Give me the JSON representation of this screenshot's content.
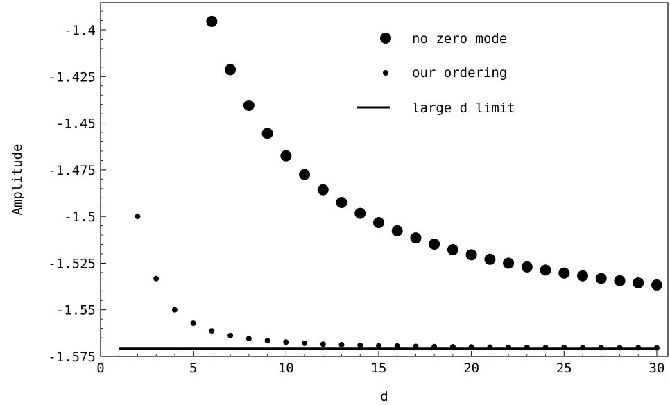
{
  "chart_data": {
    "type": "scatter",
    "title": "",
    "xlabel": "d",
    "ylabel": "Amplitude",
    "xlim": [
      0,
      30.6
    ],
    "ylim": [
      -1.575,
      -1.3855
    ],
    "x_ticks": [
      0,
      5,
      10,
      15,
      20,
      25,
      30
    ],
    "x_tick_labels": [
      "0",
      "5",
      "10",
      "15",
      "20",
      "25",
      "30"
    ],
    "y_ticks": [
      -1.4,
      -1.425,
      -1.45,
      -1.475,
      -1.5,
      -1.525,
      -1.55,
      -1.575
    ],
    "y_tick_labels": [
      "-1.4",
      "-1.425",
      "-1.45",
      "-1.475",
      "-1.5",
      "-1.525",
      "-1.55",
      "-1.575"
    ],
    "grid": false,
    "legend_position": "top-right",
    "legend": [
      "no zero mode",
      "our ordering",
      "large d limit"
    ],
    "series": [
      {
        "name": "no zero mode",
        "marker": "large-dot",
        "color": "#000000",
        "x": [
          6,
          7,
          8,
          9,
          10,
          11,
          12,
          13,
          14,
          15,
          16,
          17,
          18,
          19,
          20,
          21,
          22,
          23,
          24,
          25,
          26,
          27,
          28,
          29,
          30
        ],
        "y": [
          -1.3955,
          -1.4213,
          -1.4405,
          -1.4555,
          -1.4675,
          -1.4775,
          -1.4857,
          -1.4925,
          -1.4983,
          -1.5033,
          -1.5077,
          -1.5115,
          -1.5148,
          -1.5178,
          -1.5205,
          -1.5229,
          -1.525,
          -1.527,
          -1.5287,
          -1.5303,
          -1.5318,
          -1.5332,
          -1.5344,
          -1.5356,
          -1.5367
        ]
      },
      {
        "name": "our ordering",
        "marker": "small-dot",
        "color": "#000000",
        "x": [
          2,
          3,
          4,
          5,
          6,
          7,
          8,
          9,
          10,
          11,
          12,
          13,
          14,
          15,
          16,
          17,
          18,
          19,
          20,
          21,
          22,
          23,
          24,
          25,
          26,
          27,
          28,
          29,
          30
        ],
        "y": [
          -1.5,
          -1.5333,
          -1.55,
          -1.5572,
          -1.5613,
          -1.5638,
          -1.5654,
          -1.5665,
          -1.5673,
          -1.5679,
          -1.5684,
          -1.5687,
          -1.569,
          -1.5693,
          -1.5694,
          -1.5696,
          -1.5697,
          -1.5698,
          -1.5699,
          -1.57,
          -1.5701,
          -1.5701,
          -1.5702,
          -1.5702,
          -1.5703,
          -1.5703,
          -1.5703,
          -1.5703,
          -1.5704
        ]
      },
      {
        "name": "large d limit",
        "marker": "line",
        "color": "#000000",
        "x": [
          1,
          30
        ],
        "y": [
          -1.5708,
          -1.5708
        ]
      }
    ]
  }
}
